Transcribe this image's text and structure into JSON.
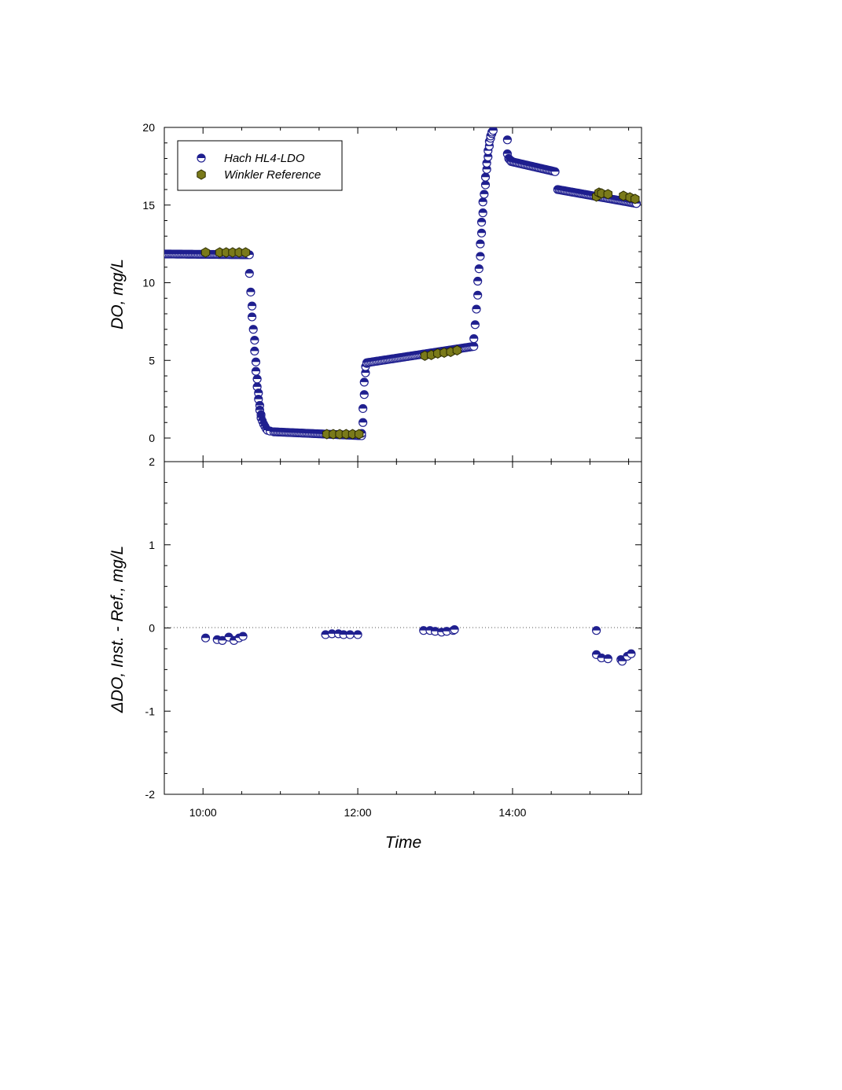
{
  "chart_data": [
    {
      "type": "scatter",
      "panel": "top",
      "xlabel": "",
      "ylabel": "DO, mg/L",
      "xlim": [
        "09:30",
        "15:40"
      ],
      "ylim": [
        0,
        20
      ],
      "yticks": [
        0,
        5,
        10,
        15,
        20
      ],
      "yticks_labeled": [
        0,
        5,
        10,
        15,
        20
      ],
      "grid": false,
      "legend": {
        "position": "top-left",
        "entries": [
          {
            "label": "Hach HL4-LDO",
            "marker": "half-filled-circle",
            "color": "#1f1f8f"
          },
          {
            "label": "Winkler Reference",
            "marker": "hexagon",
            "color": "#7a7a1a"
          }
        ]
      },
      "series": [
        {
          "name": "Hach HL4-LDO",
          "segments": [
            {
              "kind": "flat",
              "x": [
                "09:30",
                "10:36"
              ],
              "y": [
                11.85,
                11.8
              ]
            },
            {
              "kind": "points",
              "x": [
                "10:36",
                "10:37",
                "10:38",
                "10:38",
                "10:39",
                "10:40",
                "10:40",
                "10:41",
                "10:41",
                "10:42",
                "10:42",
                "10:43",
                "10:43",
                "10:44",
                "10:44",
                "10:45",
                "10:45",
                "10:46",
                "10:47",
                "10:48",
                "10:49",
                "10:50",
                "10:52",
                "10:55"
              ],
              "y": [
                10.6,
                9.4,
                8.5,
                7.8,
                7.0,
                6.3,
                5.6,
                4.9,
                4.3,
                3.8,
                3.3,
                2.9,
                2.5,
                2.1,
                1.8,
                1.5,
                1.3,
                1.1,
                0.9,
                0.75,
                0.6,
                0.5,
                0.45,
                0.4
              ]
            },
            {
              "kind": "flat",
              "x": [
                "10:55",
                "12:03"
              ],
              "y": [
                0.4,
                0.15
              ]
            },
            {
              "kind": "points",
              "x": [
                "12:03",
                "12:04",
                "12:04",
                "12:05",
                "12:05",
                "12:06",
                "12:06",
                "12:07"
              ],
              "y": [
                0.3,
                1.0,
                1.9,
                2.8,
                3.6,
                4.2,
                4.6,
                4.8
              ]
            },
            {
              "kind": "flat",
              "x": [
                "12:07",
                "13:30"
              ],
              "y": [
                4.85,
                5.9
              ]
            },
            {
              "kind": "points",
              "x": [
                "13:30",
                "13:31",
                "13:32",
                "13:33",
                "13:33",
                "13:34",
                "13:35",
                "13:35",
                "13:36",
                "13:36",
                "13:37",
                "13:37",
                "13:38",
                "13:39",
                "13:39",
                "13:40",
                "13:40",
                "13:41",
                "13:41",
                "13:42",
                "13:42",
                "13:43",
                "13:43",
                "13:44",
                "13:44",
                "13:45"
              ],
              "y": [
                6.4,
                7.3,
                8.3,
                9.2,
                10.1,
                10.9,
                11.7,
                12.5,
                13.2,
                13.9,
                14.5,
                15.2,
                15.7,
                16.3,
                16.8,
                17.3,
                17.7,
                18.1,
                18.5,
                18.8,
                19.1,
                19.3,
                19.45,
                19.6,
                19.7,
                19.8
              ]
            },
            {
              "kind": "points",
              "x": [
                "13:56",
                "13:56",
                "13:57",
                "13:58",
                "13:59"
              ],
              "y": [
                19.2,
                18.3,
                18.0,
                17.9,
                17.85
              ]
            },
            {
              "kind": "flat",
              "x": [
                "13:59",
                "14:33"
              ],
              "y": [
                17.8,
                17.15
              ]
            },
            {
              "kind": "flat",
              "x": [
                "14:35",
                "15:36"
              ],
              "y": [
                16.0,
                15.1
              ]
            }
          ]
        },
        {
          "name": "Winkler Reference",
          "x": [
            "10:02",
            "10:13",
            "10:18",
            "10:23",
            "10:28",
            "10:33",
            "11:36",
            "11:41",
            "11:46",
            "11:51",
            "11:56",
            "12:01",
            "12:52",
            "12:57",
            "13:02",
            "13:07",
            "13:12",
            "13:17",
            "15:05",
            "15:07",
            "15:09",
            "15:14",
            "15:26",
            "15:31",
            "15:35"
          ],
          "y": [
            11.95,
            11.95,
            11.95,
            11.95,
            11.95,
            11.95,
            0.25,
            0.25,
            0.25,
            0.25,
            0.25,
            0.25,
            5.3,
            5.35,
            5.45,
            5.5,
            5.55,
            5.65,
            15.55,
            15.8,
            15.75,
            15.7,
            15.6,
            15.5,
            15.4
          ]
        }
      ]
    },
    {
      "type": "scatter",
      "panel": "bottom",
      "xlabel": "Time",
      "ylabel": "ΔDO, Inst. - Ref., mg/L",
      "xlim": [
        "09:30",
        "15:40"
      ],
      "xticks": [
        "10:00",
        "12:00",
        "14:00"
      ],
      "ylim": [
        -2,
        2
      ],
      "yticks_labeled": [
        -2,
        -1,
        0,
        1,
        2
      ],
      "reference_line": 0,
      "grid": false,
      "series": [
        {
          "name": "Hach HL4-LDO",
          "x": [
            "10:02",
            "10:11",
            "10:15",
            "10:20",
            "10:24",
            "10:28",
            "10:31",
            "11:35",
            "11:40",
            "11:45",
            "11:49",
            "11:54",
            "12:00",
            "12:51",
            "12:56",
            "13:00",
            "13:05",
            "13:09",
            "13:14",
            "13:15",
            "15:05",
            "15:05",
            "15:09",
            "15:14",
            "15:24",
            "15:25",
            "15:29",
            "15:32"
          ],
          "y": [
            -0.12,
            -0.14,
            -0.15,
            -0.11,
            -0.15,
            -0.12,
            -0.1,
            -0.08,
            -0.07,
            -0.07,
            -0.08,
            -0.08,
            -0.08,
            -0.03,
            -0.03,
            -0.04,
            -0.05,
            -0.04,
            -0.03,
            -0.02,
            -0.03,
            -0.32,
            -0.36,
            -0.37,
            -0.38,
            -0.4,
            -0.34,
            -0.31
          ]
        }
      ]
    }
  ]
}
